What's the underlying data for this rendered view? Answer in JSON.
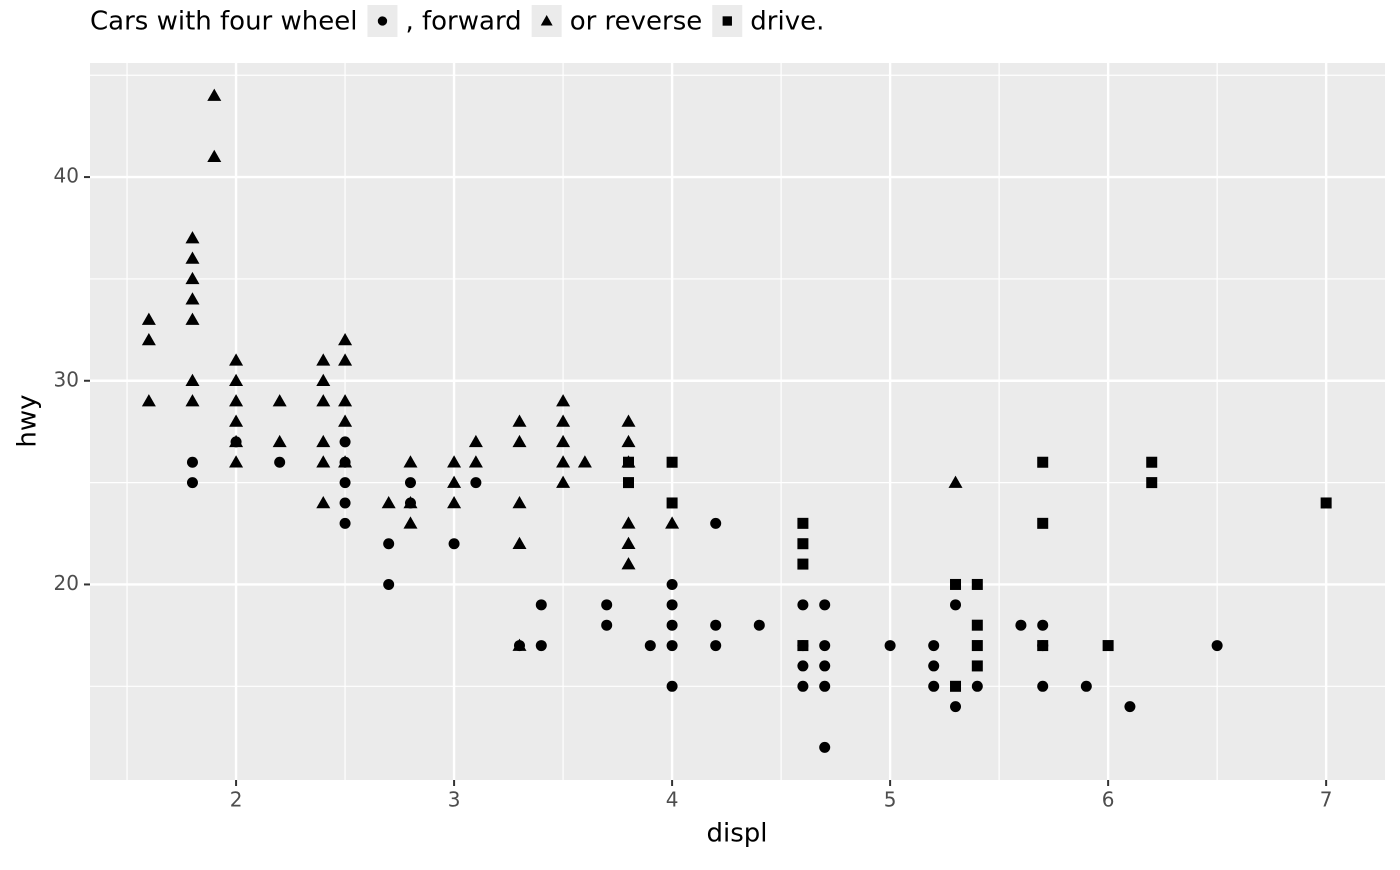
{
  "chart_data": {
    "type": "scatter",
    "title_parts": [
      "Cars with four wheel",
      ", forward",
      "or reverse",
      "drive."
    ],
    "x_label": "displ",
    "y_label": "hwy",
    "xlim": [
      1.33,
      7.27
    ],
    "ylim": [
      10.4,
      45.6
    ],
    "xticks": [
      2,
      3,
      4,
      5,
      6,
      7
    ],
    "yticks": [
      20,
      30,
      40
    ],
    "xminor": [
      1.5,
      2.5,
      3.5,
      4.5,
      5.5,
      6.5
    ],
    "yminor": [
      15,
      25,
      35,
      45
    ],
    "grid": true,
    "color": "#000000",
    "series": [
      {
        "shape": "circle",
        "x": [
          1.8,
          1.8,
          2.0,
          2.2,
          2.5,
          2.5,
          2.5,
          2.5,
          2.5,
          2.7,
          2.7,
          2.8,
          2.8,
          3.0,
          3.1,
          3.3,
          3.4,
          3.4,
          3.7,
          3.7,
          3.9,
          4.0,
          4.0,
          4.0,
          4.0,
          4.0,
          4.2,
          4.2,
          4.2,
          4.4,
          4.6,
          4.6,
          4.6,
          4.6,
          4.7,
          4.7,
          4.7,
          4.7,
          4.7,
          5.0,
          5.2,
          5.2,
          5.2,
          5.3,
          5.3,
          5.4,
          5.6,
          5.7,
          5.7,
          5.7,
          5.9,
          6.1,
          6.5
        ],
        "y": [
          26,
          25,
          27,
          26,
          27,
          26,
          25,
          24,
          23,
          22,
          20,
          25,
          24,
          22,
          25,
          17,
          19,
          17,
          19,
          18,
          17,
          20,
          19,
          18,
          17,
          15,
          23,
          18,
          17,
          18,
          19,
          17,
          16,
          15,
          19,
          17,
          16,
          15,
          12,
          17,
          17,
          16,
          15,
          19,
          14,
          15,
          18,
          18,
          17,
          15,
          15,
          14,
          17
        ]
      },
      {
        "shape": "triangle",
        "x": [
          1.6,
          1.6,
          1.6,
          1.8,
          1.8,
          1.8,
          1.8,
          1.8,
          1.8,
          1.8,
          1.9,
          1.9,
          2.0,
          2.0,
          2.0,
          2.0,
          2.0,
          2.0,
          2.2,
          2.2,
          2.4,
          2.4,
          2.4,
          2.4,
          2.4,
          2.4,
          2.5,
          2.5,
          2.5,
          2.5,
          2.5,
          2.7,
          2.8,
          2.8,
          2.8,
          3.0,
          3.0,
          3.0,
          3.1,
          3.1,
          3.3,
          3.3,
          3.3,
          3.3,
          3.3,
          3.5,
          3.5,
          3.5,
          3.5,
          3.5,
          3.6,
          3.8,
          3.8,
          3.8,
          3.8,
          3.8,
          3.8,
          4.0,
          5.3
        ],
        "y": [
          33,
          32,
          29,
          37,
          36,
          35,
          34,
          33,
          30,
          29,
          44,
          41,
          31,
          30,
          29,
          28,
          27,
          26,
          29,
          27,
          31,
          30,
          29,
          27,
          26,
          24,
          32,
          31,
          29,
          28,
          26,
          24,
          26,
          24,
          23,
          26,
          25,
          24,
          27,
          26,
          28,
          27,
          24,
          22,
          17,
          29,
          28,
          27,
          26,
          25,
          26,
          28,
          27,
          26,
          23,
          22,
          21,
          23,
          25
        ]
      },
      {
        "shape": "square",
        "x": [
          3.8,
          3.8,
          4.0,
          4.0,
          4.6,
          4.6,
          4.6,
          4.6,
          5.3,
          5.3,
          5.4,
          5.4,
          5.4,
          5.4,
          5.7,
          5.7,
          5.7,
          6.0,
          6.2,
          6.2,
          7.0
        ],
        "y": [
          26,
          25,
          26,
          24,
          23,
          22,
          21,
          17,
          20,
          15,
          20,
          18,
          17,
          16,
          26,
          23,
          17,
          17,
          26,
          25,
          24
        ]
      }
    ]
  }
}
